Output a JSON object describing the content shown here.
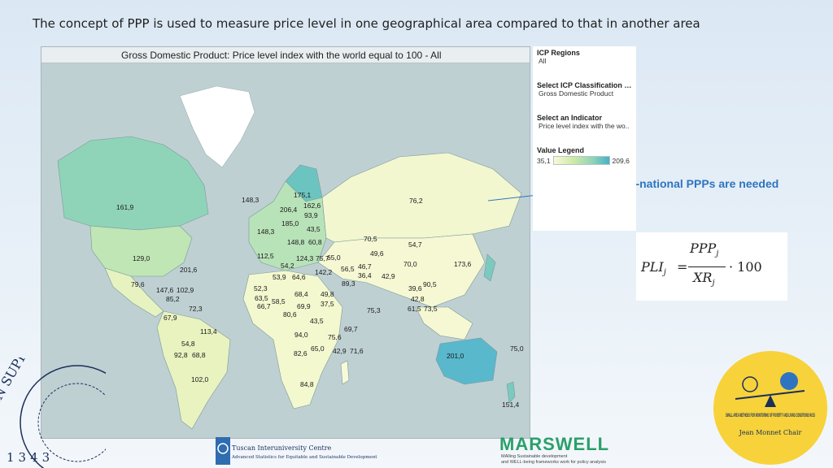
{
  "slide": {
    "title": "The concept of PPP is used to measure price level in one geographical area compared to that in another area",
    "callout": "Sub-national PPPs are needed"
  },
  "map": {
    "header": "Gross Domestic Product: Price level index with the world equal to 100 - All",
    "labels": [
      {
        "text": "161,9"
      },
      {
        "text": "129,0"
      },
      {
        "text": "201,6"
      },
      {
        "text": "148,3"
      },
      {
        "text": "175,1"
      },
      {
        "text": "162,6"
      },
      {
        "text": "206,4"
      },
      {
        "text": "93,9"
      },
      {
        "text": "185,0"
      },
      {
        "text": "148,3"
      },
      {
        "text": "43,5"
      },
      {
        "text": "148,8"
      },
      {
        "text": "60,8"
      },
      {
        "text": "76,2"
      },
      {
        "text": "112,5"
      },
      {
        "text": "124,3"
      },
      {
        "text": "75,7"
      },
      {
        "text": "54,2"
      },
      {
        "text": "142,2"
      },
      {
        "text": "70,5"
      },
      {
        "text": "54,7"
      },
      {
        "text": "65,0"
      },
      {
        "text": "49,6"
      },
      {
        "text": "56,5"
      },
      {
        "text": "46,7"
      },
      {
        "text": "36,4"
      },
      {
        "text": "70,0"
      },
      {
        "text": "173,6"
      },
      {
        "text": "53,9"
      },
      {
        "text": "64,6"
      },
      {
        "text": "89,3"
      },
      {
        "text": "42,9"
      },
      {
        "text": "39,6"
      },
      {
        "text": "90,5"
      },
      {
        "text": "79,6"
      },
      {
        "text": "147,6"
      },
      {
        "text": "102,9"
      },
      {
        "text": "85,2"
      },
      {
        "text": "52,3"
      },
      {
        "text": "63,5"
      },
      {
        "text": "66,7"
      },
      {
        "text": "68,4"
      },
      {
        "text": "49,8"
      },
      {
        "text": "58,5"
      },
      {
        "text": "69,9"
      },
      {
        "text": "37,5"
      },
      {
        "text": "42,8"
      },
      {
        "text": "72,3"
      },
      {
        "text": "67,9"
      },
      {
        "text": "80,6"
      },
      {
        "text": "75,3"
      },
      {
        "text": "61,5"
      },
      {
        "text": "73,5"
      },
      {
        "text": "113,4"
      },
      {
        "text": "43,5"
      },
      {
        "text": "69,7"
      },
      {
        "text": "94,0"
      },
      {
        "text": "75,6"
      },
      {
        "text": "54,8"
      },
      {
        "text": "92,8"
      },
      {
        "text": "68,8"
      },
      {
        "text": "82,6"
      },
      {
        "text": "65,0"
      },
      {
        "text": "42,9"
      },
      {
        "text": "71,6"
      },
      {
        "text": "201,0"
      },
      {
        "text": "75,0"
      },
      {
        "text": "102,0"
      },
      {
        "text": "84,8"
      },
      {
        "text": "151,4"
      }
    ]
  },
  "sidebar": {
    "regions_title": "ICP Regions",
    "regions_value": "All",
    "classification_title": "Select ICP Classification L..",
    "classification_value": "Gross Domestic Product",
    "indicator_title": "Select an Indicator",
    "indicator_value": "Price level index with the wo..",
    "legend_title": "Value Legend",
    "legend_min": "35,1",
    "legend_max": "209,6"
  },
  "formula": {
    "lhs": "PLI",
    "lhs_sub": "j",
    "eq": "=",
    "num": "PPP",
    "num_sub": "j",
    "den": "XR",
    "den_sub": "j",
    "rhs": "· 100"
  },
  "logos": {
    "tuscan_name": "Tuscan Interuniversity Centre",
    "tuscan_sub": "Advanced Statistics for Equitable and Sustainable Development",
    "marswell_name": "MARSWELL",
    "marswell_sub_1": "MAlling Sustainable development",
    "marswell_sub_2": "and WELL-being frameworks work for policy analysis",
    "jmc_text": "SMALL AREA METHODS FOR MONITORING OF POVERTY AND LIVING CONDITIONS IN EU",
    "jmc_chair": "Jean Monnet Chair",
    "seal_text": "IN SUPREMA",
    "seal_year": "1343"
  },
  "colors": {
    "callout": "#2f74c0",
    "ocean": "#bfd0d3",
    "land_low": "#f7f9d8",
    "land_high": "#44b2c8"
  }
}
